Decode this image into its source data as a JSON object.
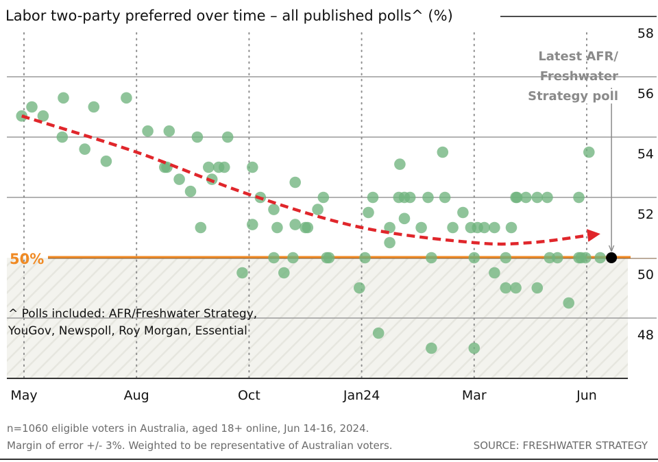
{
  "chart_data": {
    "type": "scatter",
    "title": "Labor two-party preferred over time – all published polls^ (%)",
    "xlabel": "",
    "ylabel": "",
    "x_ticks": [
      "May",
      "Aug",
      "Oct",
      "Jan24",
      "Mar",
      "Jun"
    ],
    "x_unit_note": "x is position along the axis in tick units (0 = May, 1 = Aug, 2 = Oct, 3 = Jan24, 4 = Mar, 5 = Jun)",
    "xlim": [
      -0.2,
      5.35
    ],
    "y_ticks": [
      48,
      50,
      52,
      54,
      56,
      58
    ],
    "ylim": [
      46.1,
      58
    ],
    "grid": true,
    "reference_line": {
      "value": 50,
      "label": "50%",
      "color": "#f08a24"
    },
    "shaded_below_reference": true,
    "series": [
      {
        "name": "Published polls",
        "color": "#6fb37e",
        "points": [
          [
            -0.02,
            54.7
          ],
          [
            0.07,
            55.0
          ],
          [
            0.17,
            54.7
          ],
          [
            0.35,
            55.3
          ],
          [
            0.62,
            55.0
          ],
          [
            0.91,
            55.3
          ],
          [
            0.34,
            54.0
          ],
          [
            0.54,
            53.6
          ],
          [
            0.73,
            53.2
          ],
          [
            1.1,
            54.2
          ],
          [
            1.29,
            54.2
          ],
          [
            1.25,
            53.0
          ],
          [
            1.27,
            53.0
          ],
          [
            1.38,
            52.6
          ],
          [
            1.48,
            52.2
          ],
          [
            1.57,
            51.0
          ],
          [
            1.54,
            54.0
          ],
          [
            1.64,
            53.0
          ],
          [
            1.67,
            52.6
          ],
          [
            1.73,
            53.0
          ],
          [
            1.78,
            53.0
          ],
          [
            1.81,
            54.0
          ],
          [
            2.03,
            53.0
          ],
          [
            2.1,
            52.0
          ],
          [
            2.41,
            52.5
          ],
          [
            2.22,
            51.6
          ],
          [
            2.61,
            51.6
          ],
          [
            2.66,
            52.0
          ],
          [
            2.03,
            51.1
          ],
          [
            2.25,
            51.0
          ],
          [
            2.41,
            51.1
          ],
          [
            2.5,
            51.0
          ],
          [
            2.52,
            51.0
          ],
          [
            2.22,
            50.0
          ],
          [
            2.39,
            50.0
          ],
          [
            2.69,
            50.0
          ],
          [
            2.71,
            50.0
          ],
          [
            1.94,
            49.5
          ],
          [
            2.31,
            49.5
          ],
          [
            3.72,
            53.5
          ],
          [
            3.34,
            53.1
          ],
          [
            3.1,
            52.0
          ],
          [
            3.33,
            52.0
          ],
          [
            3.38,
            52.0
          ],
          [
            3.43,
            52.0
          ],
          [
            3.59,
            52.0
          ],
          [
            3.74,
            52.0
          ],
          [
            3.06,
            51.5
          ],
          [
            3.9,
            51.5
          ],
          [
            3.25,
            51.0
          ],
          [
            3.38,
            51.3
          ],
          [
            3.53,
            51.0
          ],
          [
            3.81,
            51.0
          ],
          [
            3.97,
            51.0
          ],
          [
            3.25,
            50.5
          ],
          [
            3.03,
            50.0
          ],
          [
            3.62,
            50.0
          ],
          [
            4.0,
            50.0
          ],
          [
            2.98,
            49.0
          ],
          [
            3.15,
            47.5
          ],
          [
            3.62,
            47.0
          ],
          [
            4.0,
            47.0
          ],
          [
            4.37,
            52.0
          ],
          [
            4.38,
            52.0
          ],
          [
            4.46,
            52.0
          ],
          [
            4.56,
            52.0
          ],
          [
            4.65,
            52.0
          ],
          [
            4.93,
            52.0
          ],
          [
            4.03,
            51.0
          ],
          [
            4.09,
            51.0
          ],
          [
            4.18,
            51.0
          ],
          [
            4.33,
            51.0
          ],
          [
            4.28,
            50.0
          ],
          [
            4.67,
            50.0
          ],
          [
            4.74,
            50.0
          ],
          [
            4.93,
            50.0
          ],
          [
            4.95,
            50.0
          ],
          [
            4.99,
            50.0
          ],
          [
            5.12,
            50.0
          ],
          [
            4.18,
            49.5
          ],
          [
            4.28,
            49.0
          ],
          [
            4.37,
            49.0
          ],
          [
            4.56,
            49.0
          ],
          [
            4.84,
            48.5
          ],
          [
            5.02,
            53.5
          ]
        ]
      },
      {
        "name": "Latest AFR/Freshwater Strategy poll",
        "color": "#000000",
        "points": [
          [
            5.22,
            50.0
          ]
        ]
      },
      {
        "name": "Trend",
        "type": "line",
        "style": "dashed",
        "color": "#e0262b",
        "points": [
          [
            -0.02,
            54.7
          ],
          [
            1.0,
            53.5
          ],
          [
            2.0,
            52.1
          ],
          [
            3.0,
            51.0
          ],
          [
            4.0,
            50.5
          ],
          [
            4.5,
            50.5
          ],
          [
            5.03,
            50.75
          ]
        ]
      }
    ],
    "annotations": [
      {
        "text_lines": [
          "Latest AFR/",
          "Freshwater",
          "Strategy poll"
        ],
        "points_to": "Latest AFR/Freshwater Strategy poll"
      }
    ],
    "note_lines": [
      "^ Polls included: AFR/Freshwater Strategy,",
      "YouGov, Newspoll, Roy Morgan, Essential"
    ]
  },
  "footer": {
    "line1": "n=1060 eligible voters in Australia, aged 18+ online, Jun 14-16, 2024.",
    "line2": "Margin of error +/- 3%. Weighted to be representative of Australian voters.",
    "source": "SOURCE: FRESHWATER STRATEGY"
  }
}
